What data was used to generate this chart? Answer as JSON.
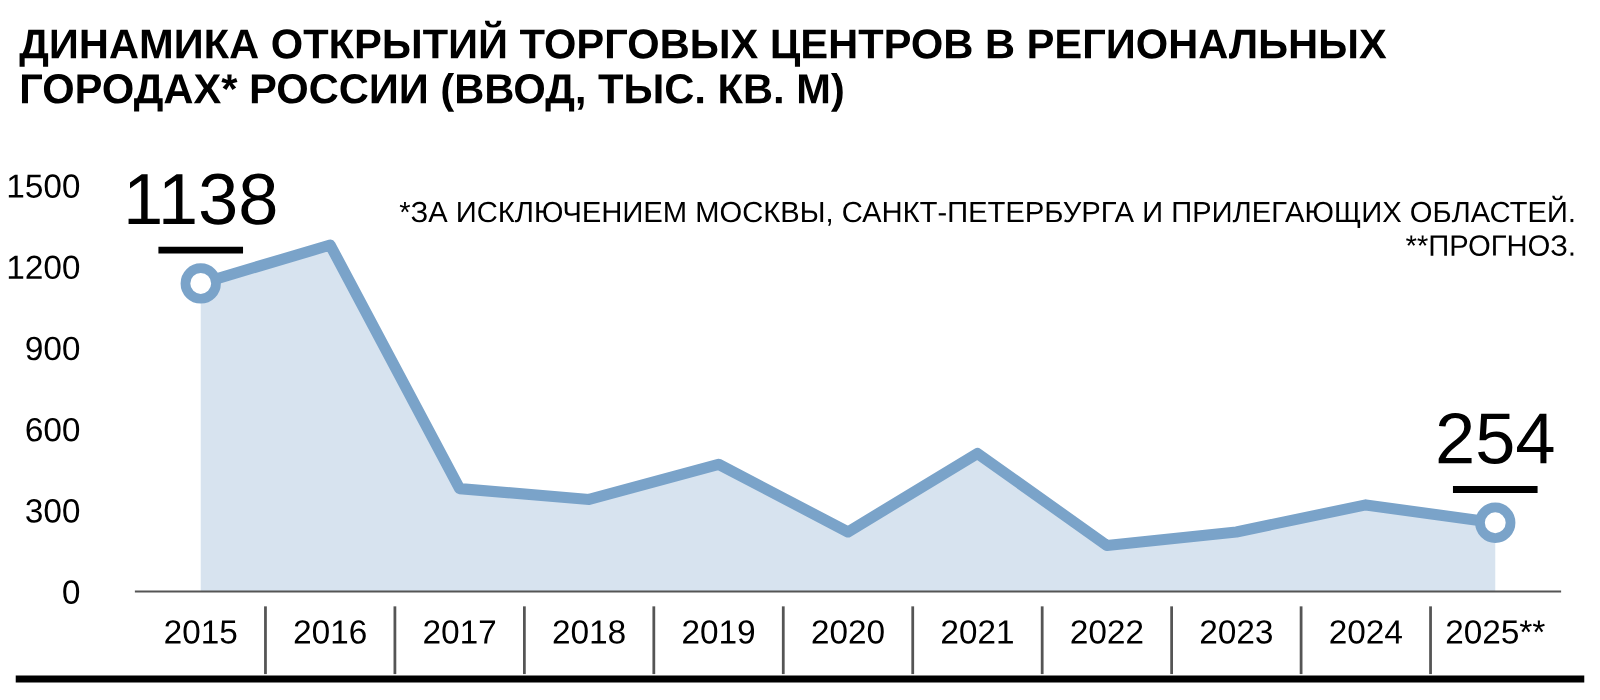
{
  "chart_data": {
    "type": "area",
    "title": "ДИНАМИКА ОТКРЫТИЙ ТОРГОВЫХ ЦЕНТРОВ В РЕГИОНАЛЬНЫХ ГОРОДАХ* РОССИИ (ВВОД, ТЫС. КВ. М)",
    "annotations": [
      "*ЗА ИСКЛЮЧЕНИЕМ МОСКВЫ, САНКТ-ПЕТЕРБУРГА И ПРИЛЕГАЮЩИХ ОБЛАСТЕЙ.",
      "**ПРОГНОЗ."
    ],
    "categories": [
      "2015",
      "2016",
      "2017",
      "2018",
      "2019",
      "2020",
      "2021",
      "2022",
      "2023",
      "2024",
      "2025**"
    ],
    "series": [
      {
        "color": "#7aa3c9",
        "values": [
          1138,
          1280,
          380,
          340,
          470,
          220,
          510,
          170,
          220,
          320,
          254
        ],
        "value_labels": [
          "1138",
          null,
          null,
          null,
          null,
          null,
          null,
          null,
          null,
          null,
          "254"
        ]
      }
    ],
    "ylim": [
      0,
      1500
    ],
    "yticks": [
      0,
      300,
      600,
      900,
      1200,
      1500
    ],
    "grid": false,
    "legend": false
  }
}
